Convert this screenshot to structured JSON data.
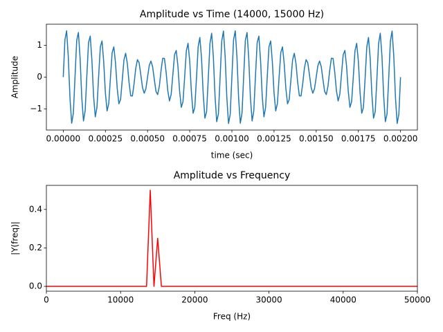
{
  "chart_data": [
    {
      "type": "line",
      "title": "Amplitude vs Time (14000, 15000 Hz)",
      "x_label": "time (sec)",
      "y_label": "Amplitude",
      "color": "#1f77b4",
      "xlim": [
        -0.0001,
        0.0021
      ],
      "ylim": [
        -1.665,
        1.665
      ],
      "xticks": [
        {
          "value": 0,
          "label": "0.00000"
        },
        {
          "value": 0.00025,
          "label": "0.00025"
        },
        {
          "value": 0.0005,
          "label": "0.00050"
        },
        {
          "value": 0.00075,
          "label": "0.00075"
        },
        {
          "value": 0.001,
          "label": "0.00100"
        },
        {
          "value": 0.00125,
          "label": "0.00125"
        },
        {
          "value": 0.0015,
          "label": "0.00150"
        },
        {
          "value": 0.00175,
          "label": "0.00175"
        },
        {
          "value": 0.002,
          "label": "0.00200"
        }
      ],
      "yticks": [
        {
          "value": -1,
          "label": "−1"
        },
        0,
        1
      ],
      "x": [
        0,
        1e-05,
        2e-05,
        3e-05,
        4e-05,
        5e-05,
        6e-05,
        7e-05,
        8e-05,
        9e-05,
        0.0001,
        0.00011,
        0.00012,
        0.00013,
        0.00014,
        0.00015,
        0.00016,
        0.00017,
        0.00018,
        0.00019,
        0.0002,
        0.00021,
        0.00022,
        0.00023,
        0.00024,
        0.00025,
        0.00026,
        0.00027,
        0.00028,
        0.00029,
        0.0003,
        0.00031,
        0.00032,
        0.00033,
        0.00034,
        0.00035,
        0.00036,
        0.00037,
        0.00038,
        0.00039,
        0.0004,
        0.00041,
        0.00042,
        0.00043,
        0.00044,
        0.00045,
        0.00046,
        0.00047,
        0.00048,
        0.00049,
        0.0005,
        0.00051,
        0.00052,
        0.00053,
        0.00054,
        0.00055,
        0.00056,
        0.00057,
        0.00058,
        0.00059,
        0.0006,
        0.00061,
        0.00062,
        0.00063,
        0.00064,
        0.00065,
        0.00066,
        0.00067,
        0.00068,
        0.00069,
        0.0007,
        0.00071,
        0.00072,
        0.00073,
        0.00074,
        0.00075,
        0.00076,
        0.00077,
        0.00078,
        0.00079,
        0.0008,
        0.00081,
        0.00082,
        0.00083,
        0.00084,
        0.00085,
        0.00086,
        0.00087,
        0.00088,
        0.00089,
        0.0009,
        0.00091,
        0.00092,
        0.00093,
        0.00094,
        0.00095,
        0.00096,
        0.00097,
        0.00098,
        0.00099,
        0.001,
        0.00101,
        0.00102,
        0.00103,
        0.00104,
        0.00105,
        0.00106,
        0.00107,
        0.00108,
        0.00109,
        0.0011,
        0.00111,
        0.00112,
        0.00113,
        0.00114,
        0.00115,
        0.00116,
        0.00117,
        0.00118,
        0.00119,
        0.0012,
        0.00121,
        0.00122,
        0.00123,
        0.00124,
        0.00125,
        0.00126,
        0.00127,
        0.00128,
        0.00129,
        0.0013,
        0.00131,
        0.00132,
        0.00133,
        0.00134,
        0.00135,
        0.00136,
        0.00137,
        0.00138,
        0.00139,
        0.0014,
        0.00141,
        0.00142,
        0.00143,
        0.00144,
        0.00145,
        0.00146,
        0.00147,
        0.00148,
        0.00149,
        0.0015,
        0.00151,
        0.00152,
        0.00153,
        0.00154,
        0.00155,
        0.00156,
        0.00157,
        0.00158,
        0.00159,
        0.0016,
        0.00161,
        0.00162,
        0.00163,
        0.00164,
        0.00165,
        0.00166,
        0.00167,
        0.00168,
        0.00169,
        0.0017,
        0.00171,
        0.00172,
        0.00173,
        0.00174,
        0.00175,
        0.00176,
        0.00177,
        0.00178,
        0.00179,
        0.0018,
        0.00181,
        0.00182,
        0.00183,
        0.00184,
        0.00185,
        0.00186,
        0.00187,
        0.00188,
        0.00189,
        0.0019,
        0.00191,
        0.00192,
        0.00193,
        0.00194,
        0.00195,
        0.00196,
        0.00197,
        0.00198,
        0.00199,
        0.002
      ],
      "values": [
        0,
        1.175,
        1.458,
        0.636,
        -0.662,
        -1.451,
        -1.138,
        0.029,
        1.16,
        1.403,
        0.588,
        -0.653,
        -1.38,
        -1.059,
        0.045,
        1.088,
        1.292,
        0.53,
        -0.601,
        -1.249,
        -0.951,
        0.036,
        0.957,
        1.137,
        0.477,
        -0.5,
        -1.064,
        -0.828,
        -0.006,
        0.773,
        0.951,
        0.44,
        -0.35,
        -0.839,
        -0.704,
        -0.088,
        0.543,
        0.75,
        0.429,
        -0.156,
        -0.588,
        -0.594,
        -0.209,
        0.28,
        0.55,
        0.451,
        0.074,
        -0.327,
        -0.507,
        -0.366,
        0,
        0.366,
        0.507,
        0.327,
        -0.074,
        -0.451,
        -0.55,
        -0.28,
        0.209,
        0.594,
        0.588,
        0.156,
        -0.429,
        -0.75,
        -0.543,
        0.088,
        0.704,
        0.839,
        0.35,
        -0.44,
        -0.951,
        -0.773,
        0.006,
        0.828,
        1.064,
        0.5,
        -0.477,
        -1.137,
        -0.957,
        -0.036,
        0.951,
        1.249,
        0.601,
        -0.53,
        -1.292,
        -1.088,
        -0.045,
        1.059,
        1.38,
        0.653,
        -0.588,
        -1.403,
        -1.16,
        -0.029,
        1.138,
        1.451,
        0.662,
        -0.636,
        -1.458,
        -1.175,
        0,
        1.175,
        1.458,
        0.636,
        -0.662,
        -1.451,
        -1.138,
        0.029,
        1.16,
        1.403,
        0.588,
        -0.653,
        -1.38,
        -1.059,
        0.045,
        1.088,
        1.292,
        0.53,
        -0.601,
        -1.249,
        -0.951,
        0.036,
        0.957,
        1.137,
        0.477,
        -0.5,
        -1.064,
        -0.828,
        -0.006,
        0.773,
        0.951,
        0.44,
        -0.35,
        -0.839,
        -0.704,
        -0.088,
        0.543,
        0.75,
        0.429,
        -0.156,
        -0.588,
        -0.594,
        -0.209,
        0.28,
        0.55,
        0.451,
        0.074,
        -0.327,
        -0.507,
        -0.366,
        0,
        0.366,
        0.507,
        0.327,
        -0.074,
        -0.451,
        -0.55,
        -0.28,
        0.209,
        0.594,
        0.588,
        0.156,
        -0.429,
        -0.75,
        -0.543,
        0.088,
        0.704,
        0.839,
        0.35,
        -0.44,
        -0.951,
        -0.773,
        0.006,
        0.828,
        1.064,
        0.5,
        -0.477,
        -1.137,
        -0.957,
        -0.036,
        0.951,
        1.249,
        0.601,
        -0.53,
        -1.292,
        -1.088,
        -0.045,
        1.059,
        1.38,
        0.653,
        -0.588,
        -1.403,
        -1.16,
        -0.029,
        1.138,
        1.451,
        0.662,
        -0.636,
        -1.458,
        -1.175,
        0
      ]
    },
    {
      "type": "line",
      "title": "Amplitude vs Frequency",
      "x_label": "Freq (Hz)",
      "y_label": "|Y(freq)|",
      "color": "#ff0000",
      "xlim": [
        0,
        50000
      ],
      "ylim": [
        -0.025,
        0.525
      ],
      "xticks": [
        0,
        10000,
        20000,
        30000,
        40000,
        50000
      ],
      "yticks": [
        {
          "value": 0,
          "label": "0.0"
        },
        {
          "value": 0.2,
          "label": "0.2"
        },
        {
          "value": 0.4,
          "label": "0.4"
        }
      ],
      "x": [
        0,
        13500,
        14000,
        14500,
        15000,
        15500,
        50000
      ],
      "values": [
        0,
        0,
        0.5,
        0,
        0.25,
        0,
        0
      ]
    }
  ]
}
